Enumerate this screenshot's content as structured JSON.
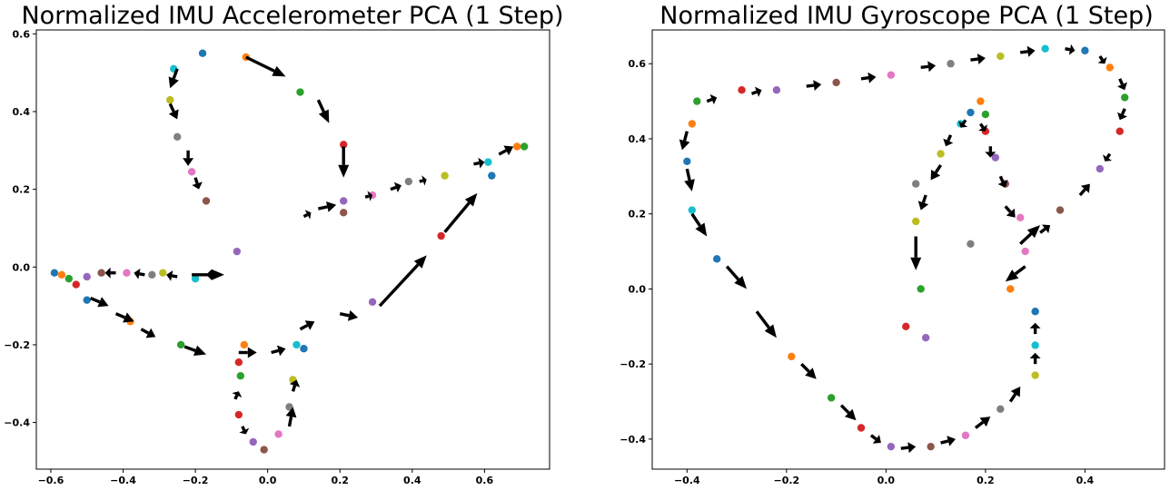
{
  "palette": [
    "#1f77b4",
    "#ff7f0e",
    "#2ca02c",
    "#d62728",
    "#9467bd",
    "#8c564b",
    "#e377c2",
    "#7f7f7f",
    "#bcbd22",
    "#17becf"
  ],
  "chart_data": [
    {
      "type": "scatter",
      "title": "Normalized IMU Accelerometer PCA (1 Step)",
      "xlim": [
        -0.64,
        0.78
      ],
      "ylim": [
        -0.52,
        0.61
      ],
      "xticks": [
        -0.6,
        -0.4,
        -0.2,
        0.0,
        0.2,
        0.4,
        0.6
      ],
      "xtick_labels": [
        "−0.6",
        "−0.4",
        "−0.2",
        "0.0",
        "0.2",
        "0.4",
        "0.6"
      ],
      "yticks": [
        -0.4,
        -0.2,
        0.0,
        0.2,
        0.4,
        0.6
      ],
      "ytick_labels": [
        "−0.4",
        "−0.2",
        "0.0",
        "0.2",
        "0.4",
        "0.6"
      ],
      "grid": false,
      "trajectory_points": [
        [
          -0.59,
          -0.015
        ],
        [
          -0.57,
          -0.02
        ],
        [
          -0.55,
          -0.03
        ],
        [
          -0.53,
          -0.045
        ],
        [
          -0.5,
          -0.025
        ],
        [
          -0.46,
          -0.015
        ],
        [
          -0.39,
          -0.015
        ],
        [
          -0.32,
          -0.02
        ],
        [
          -0.29,
          -0.015
        ],
        [
          -0.2,
          -0.03
        ],
        [
          -0.5,
          -0.085
        ],
        [
          -0.38,
          -0.14
        ],
        [
          -0.24,
          -0.2
        ],
        [
          -0.08,
          -0.38
        ],
        [
          -0.04,
          -0.45
        ],
        [
          -0.01,
          -0.47
        ],
        [
          0.03,
          -0.43
        ],
        [
          0.06,
          -0.36
        ],
        [
          0.07,
          -0.29
        ],
        [
          0.08,
          -0.2
        ],
        [
          0.1,
          -0.21
        ],
        [
          -0.065,
          -0.2
        ],
        [
          -0.075,
          -0.28
        ],
        [
          -0.08,
          -0.245
        ],
        [
          -0.085,
          0.04
        ],
        [
          -0.17,
          0.17
        ],
        [
          -0.21,
          0.245
        ],
        [
          -0.25,
          0.335
        ],
        [
          -0.27,
          0.43
        ],
        [
          -0.26,
          0.51
        ],
        [
          -0.18,
          0.55
        ],
        [
          -0.06,
          0.54
        ],
        [
          0.09,
          0.45
        ],
        [
          0.21,
          0.315
        ],
        [
          0.21,
          0.17
        ],
        [
          0.21,
          0.14
        ],
        [
          0.29,
          0.185
        ],
        [
          0.39,
          0.22
        ],
        [
          0.49,
          0.235
        ],
        [
          0.61,
          0.27
        ],
        [
          0.62,
          0.235
        ],
        [
          0.69,
          0.31
        ],
        [
          0.71,
          0.31
        ],
        [
          0.48,
          0.08
        ],
        [
          0.29,
          -0.09
        ]
      ],
      "arrows": [
        [
          -0.06,
          0.54,
          0.05,
          0.49
        ],
        [
          0.14,
          0.43,
          0.17,
          0.37
        ],
        [
          0.21,
          0.31,
          0.21,
          0.23
        ],
        [
          -0.2,
          0.55,
          -0.2,
          0.55
        ],
        [
          -0.25,
          0.51,
          -0.27,
          0.46
        ],
        [
          -0.27,
          0.42,
          -0.25,
          0.38
        ],
        [
          -0.22,
          0.3,
          -0.22,
          0.26
        ],
        [
          -0.2,
          0.23,
          -0.19,
          0.2
        ],
        [
          0.64,
          0.29,
          0.68,
          0.31
        ],
        [
          0.57,
          0.265,
          0.6,
          0.27
        ],
        [
          0.42,
          0.22,
          0.44,
          0.225
        ],
        [
          0.34,
          0.2,
          0.37,
          0.21
        ],
        [
          0.27,
          0.18,
          0.29,
          0.185
        ],
        [
          0.14,
          0.15,
          0.19,
          0.16
        ],
        [
          0.1,
          0.13,
          0.12,
          0.14
        ],
        [
          -0.42,
          -0.015,
          -0.45,
          -0.015
        ],
        [
          -0.34,
          -0.02,
          -0.37,
          -0.015
        ],
        [
          -0.25,
          -0.025,
          -0.28,
          -0.02
        ],
        [
          -0.14,
          -0.02,
          -0.17,
          -0.02
        ],
        [
          -0.49,
          -0.08,
          -0.44,
          -0.1
        ],
        [
          -0.42,
          -0.12,
          -0.37,
          -0.14
        ],
        [
          -0.35,
          -0.16,
          -0.31,
          -0.18
        ],
        [
          -0.23,
          -0.205,
          -0.17,
          -0.225
        ],
        [
          -0.08,
          -0.22,
          -0.03,
          -0.22
        ],
        [
          0.01,
          -0.22,
          0.05,
          -0.21
        ],
        [
          0.09,
          -0.16,
          0.13,
          -0.14
        ],
        [
          0.2,
          -0.12,
          0.25,
          -0.13
        ],
        [
          -0.09,
          -0.34,
          -0.08,
          -0.32
        ],
        [
          -0.07,
          -0.41,
          -0.06,
          -0.43
        ],
        [
          0.06,
          -0.41,
          0.07,
          -0.36
        ],
        [
          0.07,
          -0.32,
          0.08,
          -0.29
        ],
        [
          0.08,
          -0.23,
          0.08,
          -0.23
        ],
        [
          0.31,
          -0.1,
          0.44,
          0.03
        ],
        [
          0.49,
          0.09,
          0.58,
          0.19
        ],
        [
          -0.21,
          -0.02,
          -0.12,
          -0.02
        ]
      ]
    },
    {
      "type": "scatter",
      "title": "Normalized IMU Gyroscope PCA (1 Step)",
      "xlim": [
        -0.47,
        0.56
      ],
      "ylim": [
        -0.48,
        0.69
      ],
      "xticks": [
        -0.4,
        -0.2,
        0.0,
        0.2,
        0.4
      ],
      "xtick_labels": [
        "−0.4",
        "−0.2",
        "0.0",
        "0.2",
        "0.4"
      ],
      "yticks": [
        -0.4,
        -0.2,
        0.0,
        0.2,
        0.4,
        0.6
      ],
      "ytick_labels": [
        "−0.4",
        "−0.2",
        "0.0",
        "0.2",
        "0.4",
        "0.6"
      ],
      "grid": false,
      "trajectory_points": [
        [
          -0.4,
          0.34
        ],
        [
          -0.39,
          0.44
        ],
        [
          -0.38,
          0.5
        ],
        [
          -0.29,
          0.53
        ],
        [
          -0.22,
          0.53
        ],
        [
          -0.1,
          0.55
        ],
        [
          0.01,
          0.57
        ],
        [
          0.13,
          0.6
        ],
        [
          0.23,
          0.62
        ],
        [
          0.32,
          0.64
        ],
        [
          0.4,
          0.635
        ],
        [
          0.45,
          0.59
        ],
        [
          0.48,
          0.51
        ],
        [
          0.47,
          0.42
        ],
        [
          0.43,
          0.32
        ],
        [
          0.35,
          0.21
        ],
        [
          0.28,
          0.1
        ],
        [
          0.17,
          0.12
        ],
        [
          0.11,
          0.36
        ],
        [
          0.15,
          0.44
        ],
        [
          0.17,
          0.47
        ],
        [
          0.19,
          0.5
        ],
        [
          0.2,
          0.465
        ],
        [
          0.2,
          0.42
        ],
        [
          0.22,
          0.35
        ],
        [
          0.24,
          0.28
        ],
        [
          0.27,
          0.19
        ],
        [
          0.06,
          0.28
        ],
        [
          0.06,
          0.18
        ],
        [
          -0.39,
          0.21
        ],
        [
          -0.34,
          0.08
        ],
        [
          -0.19,
          -0.18
        ],
        [
          -0.11,
          -0.29
        ],
        [
          -0.05,
          -0.37
        ],
        [
          0.01,
          -0.42
        ],
        [
          0.09,
          -0.42
        ],
        [
          0.16,
          -0.39
        ],
        [
          0.23,
          -0.32
        ],
        [
          0.3,
          -0.23
        ],
        [
          0.3,
          -0.15
        ],
        [
          0.3,
          -0.06
        ],
        [
          0.25,
          0.0
        ],
        [
          0.07,
          0.0
        ],
        [
          0.04,
          -0.1
        ],
        [
          0.08,
          -0.13
        ]
      ],
      "arrows": [
        [
          -0.4,
          0.32,
          -0.39,
          0.26
        ],
        [
          -0.39,
          0.2,
          -0.36,
          0.14
        ],
        [
          -0.4,
          0.42,
          -0.41,
          0.37
        ],
        [
          -0.36,
          0.5,
          -0.34,
          0.51
        ],
        [
          -0.27,
          0.52,
          -0.25,
          0.53
        ],
        [
          -0.16,
          0.54,
          -0.13,
          0.545
        ],
        [
          -0.05,
          0.56,
          -0.02,
          0.565
        ],
        [
          0.07,
          0.59,
          0.1,
          0.595
        ],
        [
          0.17,
          0.61,
          0.2,
          0.615
        ],
        [
          0.27,
          0.63,
          0.3,
          0.635
        ],
        [
          0.36,
          0.64,
          0.38,
          0.635
        ],
        [
          0.43,
          0.62,
          0.44,
          0.6
        ],
        [
          0.47,
          0.56,
          0.48,
          0.53
        ],
        [
          0.48,
          0.48,
          0.47,
          0.45
        ],
        [
          0.45,
          0.36,
          0.44,
          0.34
        ],
        [
          0.39,
          0.25,
          0.41,
          0.28
        ],
        [
          0.31,
          0.15,
          0.33,
          0.17
        ],
        [
          -0.32,
          0.06,
          -0.28,
          0.0
        ],
        [
          -0.26,
          -0.06,
          -0.22,
          -0.13
        ],
        [
          -0.17,
          -0.2,
          -0.14,
          -0.24
        ],
        [
          -0.09,
          -0.31,
          -0.06,
          -0.35
        ],
        [
          -0.03,
          -0.39,
          -0.01,
          -0.41
        ],
        [
          0.03,
          -0.425,
          0.06,
          -0.42
        ],
        [
          0.11,
          -0.41,
          0.14,
          -0.4
        ],
        [
          0.18,
          -0.37,
          0.21,
          -0.34
        ],
        [
          0.25,
          -0.3,
          0.27,
          -0.26
        ],
        [
          0.3,
          -0.2,
          0.3,
          -0.17
        ],
        [
          0.3,
          -0.12,
          0.3,
          -0.09
        ],
        [
          0.08,
          0.25,
          0.07,
          0.21
        ],
        [
          0.06,
          0.14,
          0.06,
          0.05
        ],
        [
          0.11,
          0.33,
          0.09,
          0.29
        ],
        [
          0.13,
          0.41,
          0.12,
          0.38
        ],
        [
          0.16,
          0.45,
          0.15,
          0.43
        ],
        [
          0.19,
          0.44,
          0.2,
          0.42
        ],
        [
          0.21,
          0.38,
          0.21,
          0.35
        ],
        [
          0.23,
          0.3,
          0.24,
          0.27
        ],
        [
          0.24,
          0.22,
          0.26,
          0.19
        ],
        [
          0.28,
          0.06,
          0.24,
          0.02
        ],
        [
          0.27,
          0.12,
          0.31,
          0.17
        ]
      ]
    }
  ]
}
